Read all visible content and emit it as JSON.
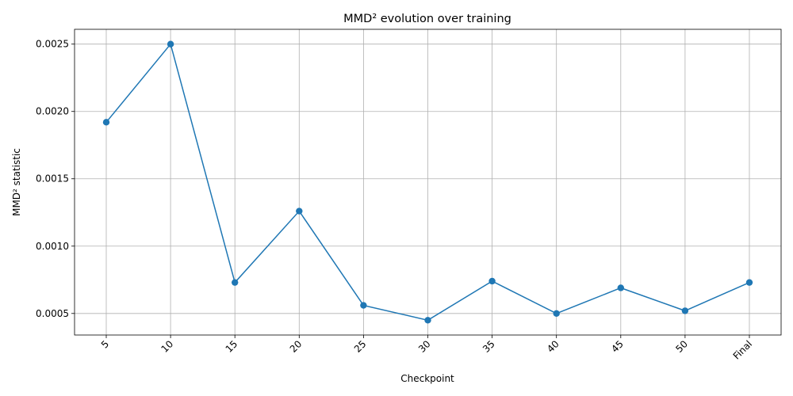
{
  "chart_data": {
    "type": "line",
    "title": "MMD² evolution over training",
    "xlabel": "Checkpoint",
    "ylabel": "MMD² statistic",
    "categories": [
      "5",
      "10",
      "15",
      "20",
      "25",
      "30",
      "35",
      "40",
      "45",
      "50",
      "Final"
    ],
    "series": [
      {
        "color": "#1f77b4",
        "marker": "circle",
        "values": [
          0.00192,
          0.0025,
          0.00073,
          0.00126,
          0.00056,
          0.00045,
          0.00074,
          0.0005,
          0.00069,
          0.00052,
          0.00073
        ]
      }
    ],
    "yticks": [
      "0.0005",
      "0.0010",
      "0.0015",
      "0.0020",
      "0.0025"
    ],
    "ylim": [
      0.00034,
      0.00261
    ],
    "grid": true,
    "legend": "none"
  }
}
